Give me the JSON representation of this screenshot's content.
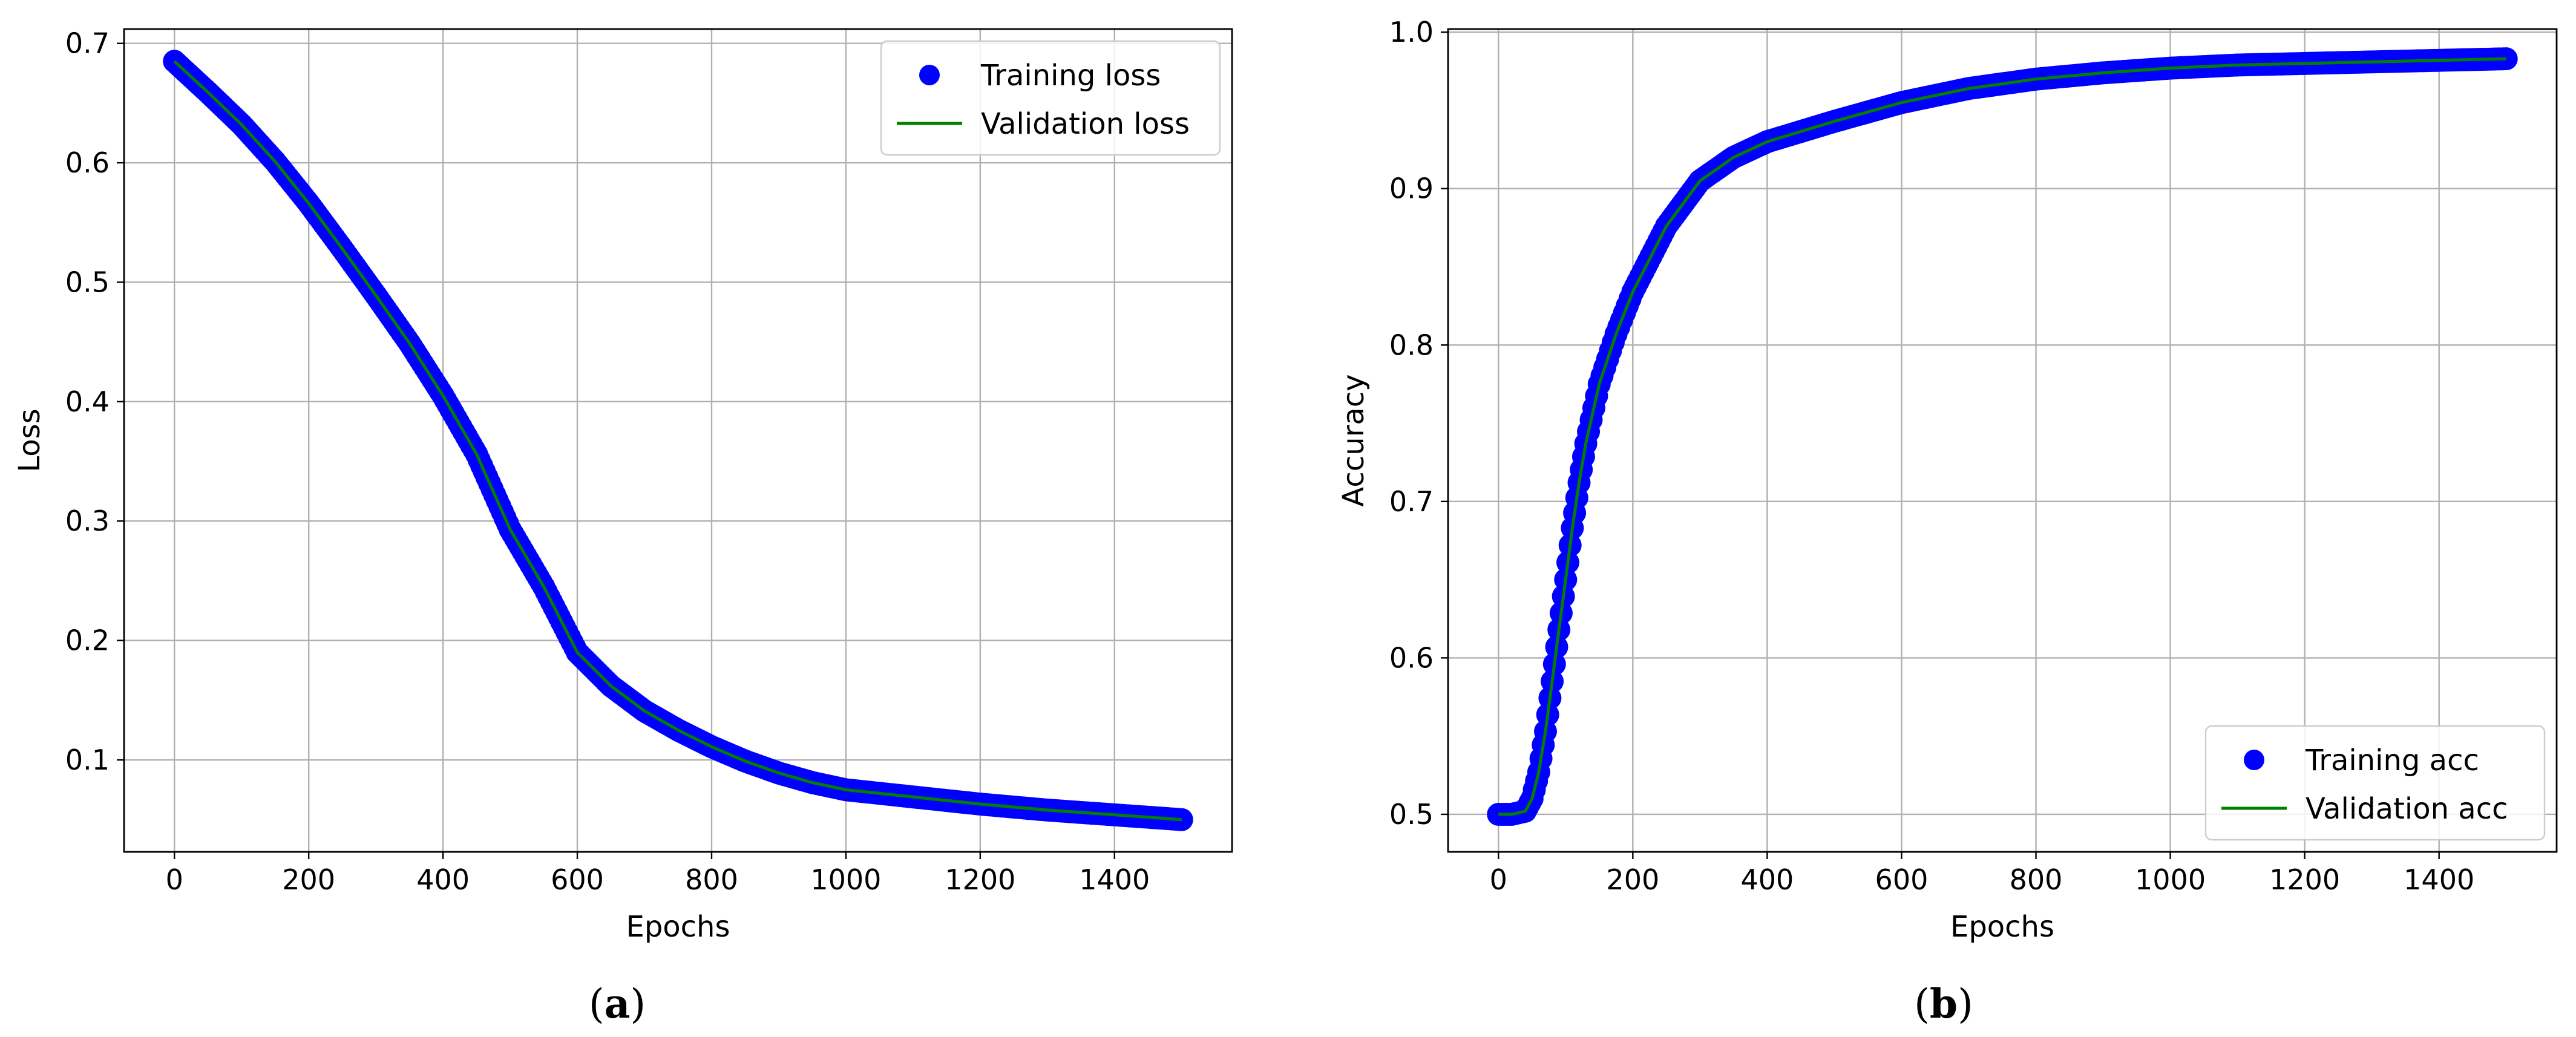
{
  "chart_data": [
    {
      "type": "scatter",
      "panel": "a",
      "caption_open": "(",
      "caption_letter": "a",
      "caption_close": ")",
      "xlabel": "Epochs",
      "ylabel": "Loss",
      "xlim": [
        -75,
        1575
      ],
      "ylim": [
        0.023,
        0.712
      ],
      "xticks": [
        0,
        200,
        400,
        600,
        800,
        1000,
        1200,
        1400
      ],
      "yticks": [
        0.1,
        0.2,
        0.3,
        0.4,
        0.5,
        0.6,
        0.7
      ],
      "ytick_labels": [
        "0.1",
        "0.2",
        "0.3",
        "0.4",
        "0.5",
        "0.6",
        "0.7"
      ],
      "grid": true,
      "legend_position": "top-right",
      "series": [
        {
          "name": "Training loss",
          "style": "markers",
          "color": "#0000ff",
          "x": [
            0,
            25,
            50,
            100,
            150,
            200,
            250,
            300,
            350,
            400,
            450,
            500,
            550,
            600,
            650,
            700,
            750,
            800,
            850,
            900,
            950,
            1000,
            1100,
            1200,
            1300,
            1400,
            1500
          ],
          "y": [
            0.685,
            0.672,
            0.659,
            0.632,
            0.601,
            0.566,
            0.528,
            0.489,
            0.449,
            0.405,
            0.356,
            0.293,
            0.245,
            0.19,
            0.162,
            0.141,
            0.125,
            0.111,
            0.099,
            0.089,
            0.081,
            0.075,
            0.069,
            0.063,
            0.058,
            0.054,
            0.05
          ]
        },
        {
          "name": "Validation loss",
          "style": "line",
          "color": "#008000",
          "x": [
            0,
            25,
            50,
            100,
            150,
            200,
            250,
            300,
            350,
            400,
            450,
            500,
            550,
            600,
            650,
            700,
            750,
            800,
            850,
            900,
            950,
            1000,
            1100,
            1200,
            1300,
            1400,
            1500
          ],
          "y": [
            0.685,
            0.672,
            0.659,
            0.632,
            0.601,
            0.566,
            0.528,
            0.489,
            0.449,
            0.405,
            0.356,
            0.293,
            0.245,
            0.19,
            0.162,
            0.141,
            0.125,
            0.111,
            0.099,
            0.089,
            0.081,
            0.075,
            0.069,
            0.063,
            0.058,
            0.054,
            0.05
          ]
        }
      ]
    },
    {
      "type": "scatter",
      "panel": "b",
      "caption_open": "(",
      "caption_letter": "b",
      "caption_close": ")",
      "xlabel": "Epochs",
      "ylabel": "Accuracy",
      "xlim": [
        -75,
        1575
      ],
      "ylim": [
        0.476,
        1.002
      ],
      "xticks": [
        0,
        200,
        400,
        600,
        800,
        1000,
        1200,
        1400
      ],
      "yticks": [
        0.5,
        0.6,
        0.7,
        0.8,
        0.9,
        1.0
      ],
      "ytick_labels": [
        "0.5",
        "0.6",
        "0.7",
        "0.8",
        "0.9",
        "1.0"
      ],
      "grid": true,
      "legend_position": "bottom-right",
      "series": [
        {
          "name": "Training acc",
          "style": "markers",
          "color": "#0000ff",
          "x": [
            0,
            20,
            40,
            50,
            60,
            70,
            80,
            90,
            100,
            110,
            120,
            130,
            150,
            175,
            200,
            250,
            300,
            350,
            400,
            500,
            600,
            700,
            800,
            900,
            1000,
            1100,
            1200,
            1300,
            1400,
            1500
          ],
          "y": [
            0.5,
            0.5,
            0.502,
            0.51,
            0.527,
            0.553,
            0.585,
            0.618,
            0.65,
            0.683,
            0.712,
            0.737,
            0.775,
            0.807,
            0.834,
            0.876,
            0.905,
            0.92,
            0.93,
            0.943,
            0.955,
            0.964,
            0.97,
            0.974,
            0.977,
            0.979,
            0.98,
            0.981,
            0.982,
            0.983
          ]
        },
        {
          "name": "Validation acc",
          "style": "line",
          "color": "#008000",
          "x": [
            0,
            20,
            40,
            50,
            60,
            70,
            80,
            90,
            100,
            110,
            120,
            130,
            150,
            175,
            200,
            250,
            300,
            350,
            400,
            500,
            600,
            700,
            800,
            900,
            1000,
            1100,
            1200,
            1300,
            1400,
            1500
          ],
          "y": [
            0.5,
            0.5,
            0.502,
            0.51,
            0.527,
            0.553,
            0.585,
            0.618,
            0.65,
            0.683,
            0.712,
            0.737,
            0.775,
            0.807,
            0.834,
            0.876,
            0.905,
            0.92,
            0.93,
            0.943,
            0.955,
            0.964,
            0.97,
            0.974,
            0.977,
            0.979,
            0.98,
            0.981,
            0.982,
            0.983
          ]
        }
      ]
    }
  ]
}
